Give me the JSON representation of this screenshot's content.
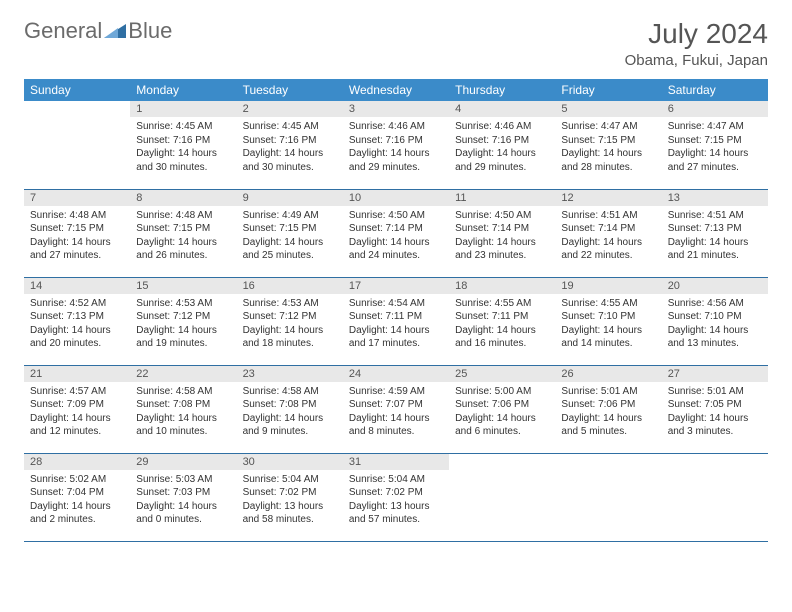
{
  "brand": {
    "part1": "General",
    "part2": "Blue"
  },
  "colors": {
    "header_bg": "#3b8bc9",
    "header_text": "#ffffff",
    "daynum_bg": "#e8e8e8",
    "daynum_text": "#555555",
    "row_border": "#2f6fa3",
    "body_text": "#333333",
    "title_text": "#555555",
    "logo_gray": "#6b6b6b",
    "logo_blue": "#2f6fa3"
  },
  "title": "July 2024",
  "location": "Obama, Fukui, Japan",
  "day_headers": [
    "Sunday",
    "Monday",
    "Tuesday",
    "Wednesday",
    "Thursday",
    "Friday",
    "Saturday"
  ],
  "weeks": [
    [
      null,
      {
        "n": "1",
        "sr": "Sunrise: 4:45 AM",
        "ss": "Sunset: 7:16 PM",
        "d1": "Daylight: 14 hours",
        "d2": "and 30 minutes."
      },
      {
        "n": "2",
        "sr": "Sunrise: 4:45 AM",
        "ss": "Sunset: 7:16 PM",
        "d1": "Daylight: 14 hours",
        "d2": "and 30 minutes."
      },
      {
        "n": "3",
        "sr": "Sunrise: 4:46 AM",
        "ss": "Sunset: 7:16 PM",
        "d1": "Daylight: 14 hours",
        "d2": "and 29 minutes."
      },
      {
        "n": "4",
        "sr": "Sunrise: 4:46 AM",
        "ss": "Sunset: 7:16 PM",
        "d1": "Daylight: 14 hours",
        "d2": "and 29 minutes."
      },
      {
        "n": "5",
        "sr": "Sunrise: 4:47 AM",
        "ss": "Sunset: 7:15 PM",
        "d1": "Daylight: 14 hours",
        "d2": "and 28 minutes."
      },
      {
        "n": "6",
        "sr": "Sunrise: 4:47 AM",
        "ss": "Sunset: 7:15 PM",
        "d1": "Daylight: 14 hours",
        "d2": "and 27 minutes."
      }
    ],
    [
      {
        "n": "7",
        "sr": "Sunrise: 4:48 AM",
        "ss": "Sunset: 7:15 PM",
        "d1": "Daylight: 14 hours",
        "d2": "and 27 minutes."
      },
      {
        "n": "8",
        "sr": "Sunrise: 4:48 AM",
        "ss": "Sunset: 7:15 PM",
        "d1": "Daylight: 14 hours",
        "d2": "and 26 minutes."
      },
      {
        "n": "9",
        "sr": "Sunrise: 4:49 AM",
        "ss": "Sunset: 7:15 PM",
        "d1": "Daylight: 14 hours",
        "d2": "and 25 minutes."
      },
      {
        "n": "10",
        "sr": "Sunrise: 4:50 AM",
        "ss": "Sunset: 7:14 PM",
        "d1": "Daylight: 14 hours",
        "d2": "and 24 minutes."
      },
      {
        "n": "11",
        "sr": "Sunrise: 4:50 AM",
        "ss": "Sunset: 7:14 PM",
        "d1": "Daylight: 14 hours",
        "d2": "and 23 minutes."
      },
      {
        "n": "12",
        "sr": "Sunrise: 4:51 AM",
        "ss": "Sunset: 7:14 PM",
        "d1": "Daylight: 14 hours",
        "d2": "and 22 minutes."
      },
      {
        "n": "13",
        "sr": "Sunrise: 4:51 AM",
        "ss": "Sunset: 7:13 PM",
        "d1": "Daylight: 14 hours",
        "d2": "and 21 minutes."
      }
    ],
    [
      {
        "n": "14",
        "sr": "Sunrise: 4:52 AM",
        "ss": "Sunset: 7:13 PM",
        "d1": "Daylight: 14 hours",
        "d2": "and 20 minutes."
      },
      {
        "n": "15",
        "sr": "Sunrise: 4:53 AM",
        "ss": "Sunset: 7:12 PM",
        "d1": "Daylight: 14 hours",
        "d2": "and 19 minutes."
      },
      {
        "n": "16",
        "sr": "Sunrise: 4:53 AM",
        "ss": "Sunset: 7:12 PM",
        "d1": "Daylight: 14 hours",
        "d2": "and 18 minutes."
      },
      {
        "n": "17",
        "sr": "Sunrise: 4:54 AM",
        "ss": "Sunset: 7:11 PM",
        "d1": "Daylight: 14 hours",
        "d2": "and 17 minutes."
      },
      {
        "n": "18",
        "sr": "Sunrise: 4:55 AM",
        "ss": "Sunset: 7:11 PM",
        "d1": "Daylight: 14 hours",
        "d2": "and 16 minutes."
      },
      {
        "n": "19",
        "sr": "Sunrise: 4:55 AM",
        "ss": "Sunset: 7:10 PM",
        "d1": "Daylight: 14 hours",
        "d2": "and 14 minutes."
      },
      {
        "n": "20",
        "sr": "Sunrise: 4:56 AM",
        "ss": "Sunset: 7:10 PM",
        "d1": "Daylight: 14 hours",
        "d2": "and 13 minutes."
      }
    ],
    [
      {
        "n": "21",
        "sr": "Sunrise: 4:57 AM",
        "ss": "Sunset: 7:09 PM",
        "d1": "Daylight: 14 hours",
        "d2": "and 12 minutes."
      },
      {
        "n": "22",
        "sr": "Sunrise: 4:58 AM",
        "ss": "Sunset: 7:08 PM",
        "d1": "Daylight: 14 hours",
        "d2": "and 10 minutes."
      },
      {
        "n": "23",
        "sr": "Sunrise: 4:58 AM",
        "ss": "Sunset: 7:08 PM",
        "d1": "Daylight: 14 hours",
        "d2": "and 9 minutes."
      },
      {
        "n": "24",
        "sr": "Sunrise: 4:59 AM",
        "ss": "Sunset: 7:07 PM",
        "d1": "Daylight: 14 hours",
        "d2": "and 8 minutes."
      },
      {
        "n": "25",
        "sr": "Sunrise: 5:00 AM",
        "ss": "Sunset: 7:06 PM",
        "d1": "Daylight: 14 hours",
        "d2": "and 6 minutes."
      },
      {
        "n": "26",
        "sr": "Sunrise: 5:01 AM",
        "ss": "Sunset: 7:06 PM",
        "d1": "Daylight: 14 hours",
        "d2": "and 5 minutes."
      },
      {
        "n": "27",
        "sr": "Sunrise: 5:01 AM",
        "ss": "Sunset: 7:05 PM",
        "d1": "Daylight: 14 hours",
        "d2": "and 3 minutes."
      }
    ],
    [
      {
        "n": "28",
        "sr": "Sunrise: 5:02 AM",
        "ss": "Sunset: 7:04 PM",
        "d1": "Daylight: 14 hours",
        "d2": "and 2 minutes."
      },
      {
        "n": "29",
        "sr": "Sunrise: 5:03 AM",
        "ss": "Sunset: 7:03 PM",
        "d1": "Daylight: 14 hours",
        "d2": "and 0 minutes."
      },
      {
        "n": "30",
        "sr": "Sunrise: 5:04 AM",
        "ss": "Sunset: 7:02 PM",
        "d1": "Daylight: 13 hours",
        "d2": "and 58 minutes."
      },
      {
        "n": "31",
        "sr": "Sunrise: 5:04 AM",
        "ss": "Sunset: 7:02 PM",
        "d1": "Daylight: 13 hours",
        "d2": "and 57 minutes."
      },
      null,
      null,
      null
    ]
  ]
}
